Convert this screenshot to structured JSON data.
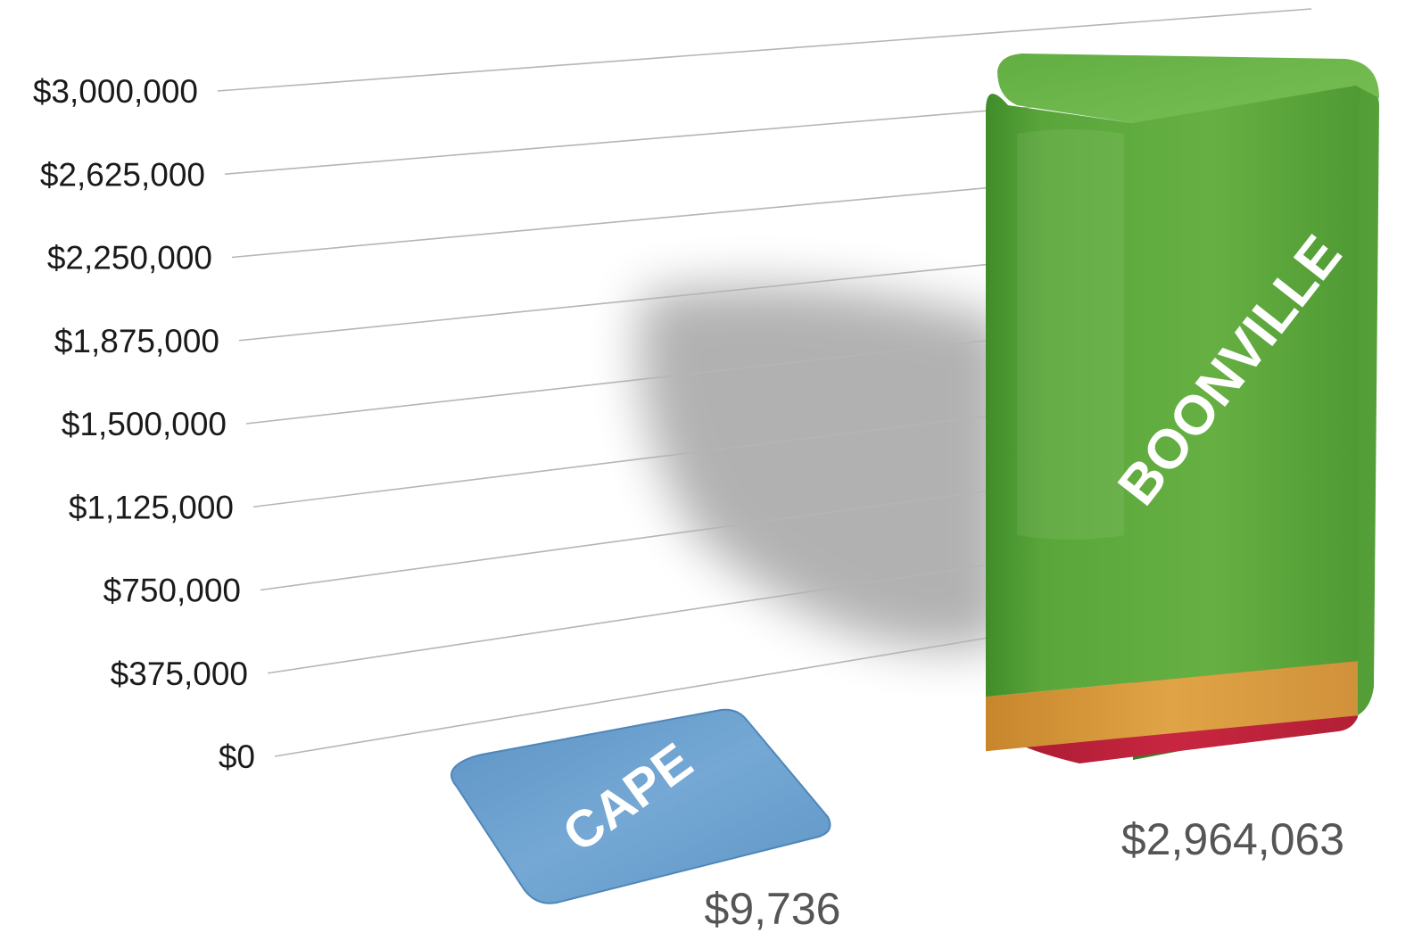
{
  "chart_data": {
    "type": "bar",
    "title": "",
    "xlabel": "",
    "ylabel": "",
    "ylim": [
      0,
      3000000
    ],
    "y_ticks": [
      {
        "value": 3000000,
        "label": "$3,000,000"
      },
      {
        "value": 2625000,
        "label": "$2,625,000"
      },
      {
        "value": 2250000,
        "label": "$2,250,000"
      },
      {
        "value": 1875000,
        "label": "$1,875,000"
      },
      {
        "value": 1500000,
        "label": "$1,500,000"
      },
      {
        "value": 1125000,
        "label": "$1,125,000"
      },
      {
        "value": 750000,
        "label": "$750,000"
      },
      {
        "value": 375000,
        "label": "$375,000"
      },
      {
        "value": 0,
        "label": "$0"
      }
    ],
    "grid": true,
    "legend": "none",
    "categories": [
      "CAPE",
      "BOONVILLE"
    ],
    "values": [
      9736,
      2964063
    ],
    "value_labels": [
      "$9,736",
      "$2,964,063"
    ],
    "stacked_segments": {
      "BOONVILLE": [
        {
          "color": "#c0203a",
          "value": 40000
        },
        {
          "color": "#d99a3a",
          "value": 250000
        },
        {
          "color": "#5aa63a",
          "value": 2674063
        }
      ]
    },
    "colors": {
      "CAPE": "#6a9fcc",
      "BOONVILLE_top": "#5aa63a",
      "BOONVILLE_mid": "#d99a3a",
      "BOONVILLE_base": "#c0203a",
      "grid": "#b5b5b5",
      "value_label": "#555555"
    }
  }
}
